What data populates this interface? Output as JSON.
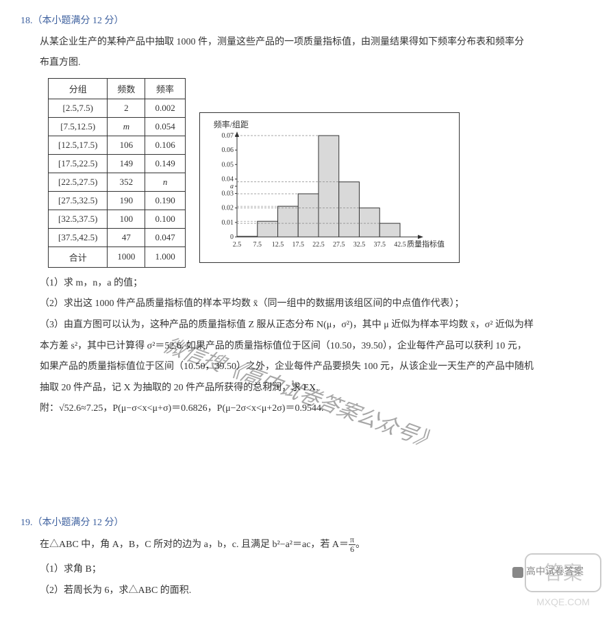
{
  "q18": {
    "header": "18.（本小题满分 12 分）",
    "intro1": "从某企业生产的某种产品中抽取 1000 件，测量这些产品的一项质量指标值，由测量结果得如下频率分布表和频率分",
    "intro2": "布直方图.",
    "table": {
      "headers": [
        "分组",
        "频数",
        "频率"
      ],
      "rows": [
        [
          "[2.5,7.5)",
          "2",
          "0.002"
        ],
        [
          "[7.5,12.5)",
          "m",
          "0.054"
        ],
        [
          "[12.5,17.5)",
          "106",
          "0.106"
        ],
        [
          "[17.5,22.5)",
          "149",
          "0.149"
        ],
        [
          "[22.5,27.5)",
          "352",
          "n"
        ],
        [
          "[27.5,32.5)",
          "190",
          "0.190"
        ],
        [
          "[32.5,37.5)",
          "100",
          "0.100"
        ],
        [
          "[37.5,42.5)",
          "47",
          "0.047"
        ],
        [
          "合计",
          "1000",
          "1.000"
        ]
      ]
    },
    "chart": {
      "y_title": "频率/组距",
      "x_title": "质量指标值",
      "x_ticks": [
        "2.5",
        "7.5",
        "12.5",
        "17.5",
        "22.5",
        "27.5",
        "32.5",
        "37.5",
        "42.5"
      ],
      "y_ticks": [
        "0",
        "0.01",
        "0.02",
        "0.03",
        "0.04",
        "0.05",
        "0.06",
        "0.07"
      ],
      "a_label": "a",
      "heights": [
        0.0004,
        0.0108,
        0.0212,
        0.0298,
        0.07,
        0.038,
        0.02,
        0.0094
      ],
      "bar_fill": "#d9d9d9",
      "bar_stroke": "#333333",
      "axis_color": "#333333",
      "label_size": 10
    },
    "sub1": "（1）求 m，n，a 的值；",
    "sub2": "（2）求出这 1000 件产品质量指标值的样本平均数 x̄（同一组中的数据用该组区间的中点值作代表）；",
    "sub3a": "（3）由直方图可以认为，这种产品的质量指标值 Z 服从正态分布 N(μ，σ²)，其中 μ 近似为样本平均数 x̄，σ² 近似为样",
    "sub3b": "本方差 s²，其中已计算得 σ²＝52.6. 如果产品的质量指标值位于区间（10.50，39.50），企业每件产品可以获利 10 元，",
    "sub3c": "如果产品的质量指标值位于区间（10.50，39.50）之外，企业每件产品要损失 100 元，从该企业一天生产的产品中随机",
    "sub3d": "抽取 20 件产品，记 X 为抽取的 20 件产品所获得的总利润，求 EX.",
    "note": "附：√52.6≈7.25，P(μ−σ<x<μ+σ)＝0.6826，P(μ−2σ<x<μ+2σ)＝0.9544."
  },
  "q19": {
    "header": "19.（本小题满分 12 分）",
    "intro_pre": "在△ABC 中，角 A，B，C 所对的边为 a，b，c. 且满足 b²−a²＝ac，若 A＝",
    "intro_post": "。",
    "frac_num": "π",
    "frac_den": "6",
    "sub1": "（1）求角 B；",
    "sub2": "（2）若周长为 6，求△ABC 的面积."
  },
  "watermarks": {
    "main": "微信搜《高中试卷答案公众号》",
    "corner": "高中试卷答案",
    "stamp_text": "答案",
    "url": "MXQE.COM"
  }
}
